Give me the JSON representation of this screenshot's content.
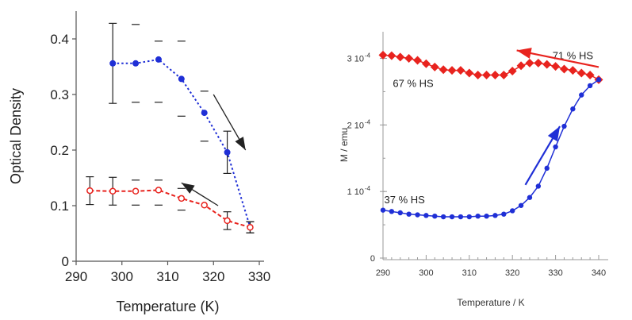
{
  "chart_data": [
    {
      "type": "line",
      "title": "",
      "xlabel": "Temperature (K)",
      "ylabel": "Optical Density",
      "xlim": [
        290,
        330
      ],
      "ylim": [
        0,
        0.45
      ],
      "x_ticks": [
        "290",
        "300",
        "310",
        "320",
        "330"
      ],
      "y_ticks": [
        "0",
        "0.1",
        "0.2",
        "0.3",
        "0.4"
      ],
      "grid": false,
      "colors": {
        "blue": "#1f2fd6",
        "red": "#e8231e"
      },
      "series": [
        {
          "x": [
            298,
            303,
            308,
            313,
            318,
            323,
            328
          ],
          "y": [
            0.356,
            0.356,
            0.363,
            0.328,
            0.267,
            0.196,
            0.061
          ],
          "err": [
            0.072,
            0,
            0,
            0,
            0,
            0.038,
            0.01
          ],
          "marker": "filled-circle",
          "color": "#1f2fd6",
          "style": "dotted"
        },
        {
          "x": [
            293,
            298,
            303,
            308,
            313,
            318,
            323,
            328
          ],
          "y": [
            0.127,
            0.126,
            0.126,
            0.128,
            0.113,
            0.101,
            0.073,
            0.061
          ],
          "err": [
            0.025,
            0.025,
            0,
            0,
            0,
            0,
            0.016,
            0.01
          ],
          "marker": "open-circle",
          "color": "#e8231e",
          "style": "dashed"
        }
      ],
      "dash_marks": [
        {
          "x": 303,
          "y": 0.426
        },
        {
          "x": 303,
          "y": 0.286
        },
        {
          "x": 308,
          "y": 0.396
        },
        {
          "x": 308,
          "y": 0.286
        },
        {
          "x": 313,
          "y": 0.396
        },
        {
          "x": 313,
          "y": 0.261
        },
        {
          "x": 318,
          "y": 0.306
        },
        {
          "x": 318,
          "y": 0.216
        },
        {
          "x": 303,
          "y": 0.146
        },
        {
          "x": 303,
          "y": 0.101
        },
        {
          "x": 308,
          "y": 0.146
        },
        {
          "x": 308,
          "y": 0.101
        },
        {
          "x": 313,
          "y": 0.131
        },
        {
          "x": 313,
          "y": 0.092
        }
      ],
      "arrows": [
        {
          "from": [
            320,
            0.3
          ],
          "to": [
            327,
            0.2
          ],
          "direction": "heating"
        },
        {
          "from": [
            321,
            0.1
          ],
          "to": [
            313,
            0.141
          ],
          "direction": "cooling"
        }
      ]
    },
    {
      "type": "line",
      "title": "",
      "xlabel": "Temperature / K",
      "ylabel": "M / emu",
      "xlim": [
        290,
        340
      ],
      "ylim": [
        0,
        0.00034
      ],
      "x_ticks": [
        "290",
        "300",
        "310",
        "320",
        "330",
        "340"
      ],
      "y_ticks": [
        "0",
        "1 10",
        "2 10",
        "3 10"
      ],
      "y_tick_exponent": "-4",
      "grid": false,
      "series": [
        {
          "x": [
            290,
            292,
            294,
            296,
            298,
            300,
            302,
            304,
            306,
            308,
            310,
            312,
            314,
            316,
            318,
            320,
            322,
            324,
            326,
            328,
            330,
            332,
            334,
            336,
            338,
            340
          ],
          "y": [
            0.000305,
            0.000304,
            0.000302,
            0.0003,
            0.000297,
            0.000292,
            0.000287,
            0.000283,
            0.000282,
            0.000282,
            0.000278,
            0.000275,
            0.000275,
            0.000275,
            0.000275,
            0.000281,
            0.000289,
            0.000293,
            0.000293,
            0.000291,
            0.000288,
            0.000284,
            0.000282,
            0.000278,
            0.000275,
            0.000268
          ],
          "marker": "filled-diamond",
          "color": "#e8231e"
        },
        {
          "x": [
            290,
            292,
            294,
            296,
            298,
            300,
            302,
            304,
            306,
            308,
            310,
            312,
            314,
            316,
            318,
            320,
            322,
            324,
            326,
            328,
            330,
            332,
            334,
            336,
            338,
            340
          ],
          "y": [
            7.2e-05,
            7e-05,
            6.8e-05,
            6.6e-05,
            6.5e-05,
            6.4e-05,
            6.3e-05,
            6.2e-05,
            6.2e-05,
            6.2e-05,
            6.2e-05,
            6.3e-05,
            6.3e-05,
            6.4e-05,
            6.6e-05,
            7.1e-05,
            7.9e-05,
            9.1e-05,
            0.000108,
            0.000135,
            0.000167,
            0.000198,
            0.000224,
            0.000245,
            0.000259,
            0.000268
          ],
          "marker": "filled-circle",
          "color": "#1f2fd6"
        }
      ],
      "annotations": [
        {
          "text": "71 % HS",
          "x": 334,
          "y": 0.000305
        },
        {
          "text": "67 % HS",
          "x": 297,
          "y": 0.000263
        },
        {
          "text": "37 % HS",
          "x": 295,
          "y": 8.8e-05
        }
      ],
      "arrows": [
        {
          "from": [
            340,
            0.000287
          ],
          "to": [
            321,
            0.000312
          ],
          "color": "#e8231e"
        },
        {
          "from": [
            323,
            0.00011
          ],
          "to": [
            331,
            0.000198
          ],
          "color": "#1f2fd6"
        }
      ]
    }
  ]
}
